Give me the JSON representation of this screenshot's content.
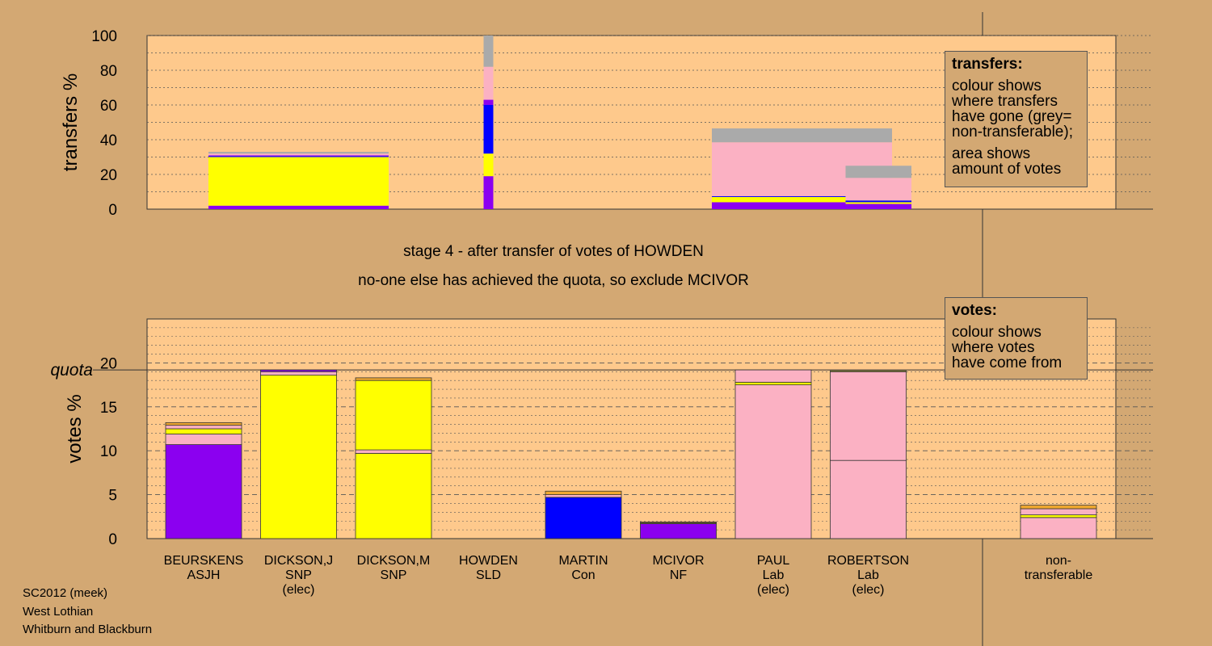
{
  "footer": {
    "line1": "SC2012 (meek)",
    "line2": "West Lothian",
    "line3": "Whitburn and Blackburn"
  },
  "stage_text": "stage 4 - after transfer of votes of HOWDEN",
  "action_text": "no-one else has achieved the quota, so exclude MCIVOR",
  "legend_transfers": {
    "title": "transfers:",
    "line1": "colour shows",
    "line2": "where transfers",
    "line3": "have gone (grey=",
    "line4": "non-transferable);",
    "line5": "area shows",
    "line6": "amount of votes"
  },
  "legend_votes": {
    "title": "votes:",
    "line1": "colour shows",
    "line2": "where votes",
    "line3": "have come from"
  },
  "colors": {
    "background": "#d3a873",
    "panel": "#fec98c",
    "ASJH": "#8b00f0",
    "SNP": "#ffff00",
    "SLD": "#f0a830",
    "Con": "#0000ff",
    "NF": "#8b00f0",
    "Lab": "#fbb1c3",
    "non_transferable": "#aaaaaa"
  },
  "chart_data": [
    {
      "type": "bar",
      "name": "transfers",
      "ylabel": "transfers %",
      "ylim": [
        0,
        100
      ],
      "yticks": [
        0,
        20,
        40,
        60,
        80,
        100
      ],
      "bars": [
        {
          "candidate": "DICKSON,J",
          "width_share": 0.186,
          "segments": [
            {
              "color": "ASJH",
              "value": 2
            },
            {
              "color": "SNP",
              "value": 28
            },
            {
              "color": "Con",
              "value": 0.5
            },
            {
              "color": "NF",
              "value": 0.5
            },
            {
              "color": "Lab",
              "value": 1
            },
            {
              "color": "non_transferable",
              "value": 1
            }
          ]
        },
        {
          "candidate": "HOWDEN",
          "width_share": 0.01,
          "segments": [
            {
              "color": "ASJH",
              "value": 19
            },
            {
              "color": "SNP",
              "value": 13
            },
            {
              "color": "Con",
              "value": 28
            },
            {
              "color": "NF",
              "value": 3
            },
            {
              "color": "Lab",
              "value": 19
            },
            {
              "color": "non_transferable",
              "value": 18
            }
          ]
        },
        {
          "candidate": "PAUL",
          "width_share": 0.186,
          "segments": [
            {
              "color": "ASJH",
              "value": 4
            },
            {
              "color": "SNP",
              "value": 3
            },
            {
              "color": "Con",
              "value": 0.5
            },
            {
              "color": "Lab",
              "value": 31
            },
            {
              "color": "non_transferable",
              "value": 8
            }
          ]
        },
        {
          "candidate": "ROBERTSON",
          "width_share": 0.068,
          "segments": [
            {
              "color": "ASJH",
              "value": 3
            },
            {
              "color": "SNP",
              "value": 1
            },
            {
              "color": "Con",
              "value": 1
            },
            {
              "color": "Lab",
              "value": 13
            },
            {
              "color": "non_transferable",
              "value": 7
            }
          ]
        }
      ]
    },
    {
      "type": "bar",
      "name": "votes",
      "ylabel": "votes %",
      "ylim": [
        0,
        25
      ],
      "yticks": [
        0,
        5,
        10,
        15,
        20
      ],
      "quota": 19.2,
      "quota_label": "quota",
      "candidates": [
        {
          "name": "BEURSKENS",
          "party": "ASJH",
          "note": "",
          "segments": [
            {
              "color": "ASJH",
              "value": 10.7
            },
            {
              "color": "Lab",
              "value": 1.2
            },
            {
              "color": "SNP",
              "value": 0.6
            },
            {
              "color": "Lab",
              "value": 0.4
            },
            {
              "color": "SLD",
              "value": 0.3
            }
          ]
        },
        {
          "name": "DICKSON,J",
          "party": "SNP",
          "note": "(elec)",
          "segments": [
            {
              "color": "SNP",
              "value": 18.6
            },
            {
              "color": "Lab",
              "value": 0.4
            },
            {
              "color": "NF",
              "value": 0.2
            }
          ]
        },
        {
          "name": "DICKSON,M",
          "party": "SNP",
          "note": "",
          "segments": [
            {
              "color": "SNP",
              "value": 9.7
            },
            {
              "color": "Lab",
              "value": 0.4
            },
            {
              "color": "SNP",
              "value": 7.9
            },
            {
              "color": "SLD",
              "value": 0.3
            }
          ]
        },
        {
          "name": "HOWDEN",
          "party": "SLD",
          "note": "",
          "segments": []
        },
        {
          "name": "MARTIN",
          "party": "Con",
          "note": "",
          "segments": [
            {
              "color": "Con",
              "value": 4.7
            },
            {
              "color": "Lab",
              "value": 0.3
            },
            {
              "color": "SLD",
              "value": 0.4
            }
          ]
        },
        {
          "name": "MCIVOR",
          "party": "NF",
          "note": "",
          "segments": [
            {
              "color": "NF",
              "value": 1.7
            },
            {
              "color": "SNP",
              "value": 0.1
            },
            {
              "color": "SLD",
              "value": 0.1
            }
          ]
        },
        {
          "name": "PAUL",
          "party": "Lab",
          "note": "(elec)",
          "segments": [
            {
              "color": "Lab",
              "value": 17.5
            },
            {
              "color": "SNP",
              "value": 0.3
            },
            {
              "color": "Lab",
              "value": 1.4
            }
          ]
        },
        {
          "name": "ROBERTSON",
          "party": "Lab",
          "note": "(elec)",
          "segments": [
            {
              "color": "Lab",
              "value": 8.9
            },
            {
              "color": "Lab",
              "value": 10.1
            },
            {
              "color": "SNP",
              "value": 0.1
            }
          ]
        }
      ],
      "non_transferable": {
        "label1": "non-",
        "label2": "transferable",
        "segments": [
          {
            "color": "Lab",
            "value": 2.4
          },
          {
            "color": "SNP",
            "value": 0.3
          },
          {
            "color": "Lab",
            "value": 0.7
          },
          {
            "color": "SLD",
            "value": 0.4
          }
        ]
      }
    }
  ]
}
